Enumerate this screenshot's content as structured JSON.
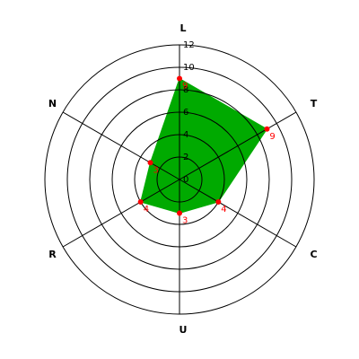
{
  "chart_data": {
    "type": "radar",
    "categories": [
      "L",
      "T",
      "C",
      "U",
      "R",
      "N"
    ],
    "values": [
      9,
      9,
      4,
      3,
      4,
      3
    ],
    "color": "#00aa00",
    "marker_color": "#ff0000",
    "rlim": [
      0,
      12
    ],
    "rticks": [
      0,
      2,
      4,
      6,
      8,
      10,
      12
    ],
    "grid": true
  }
}
